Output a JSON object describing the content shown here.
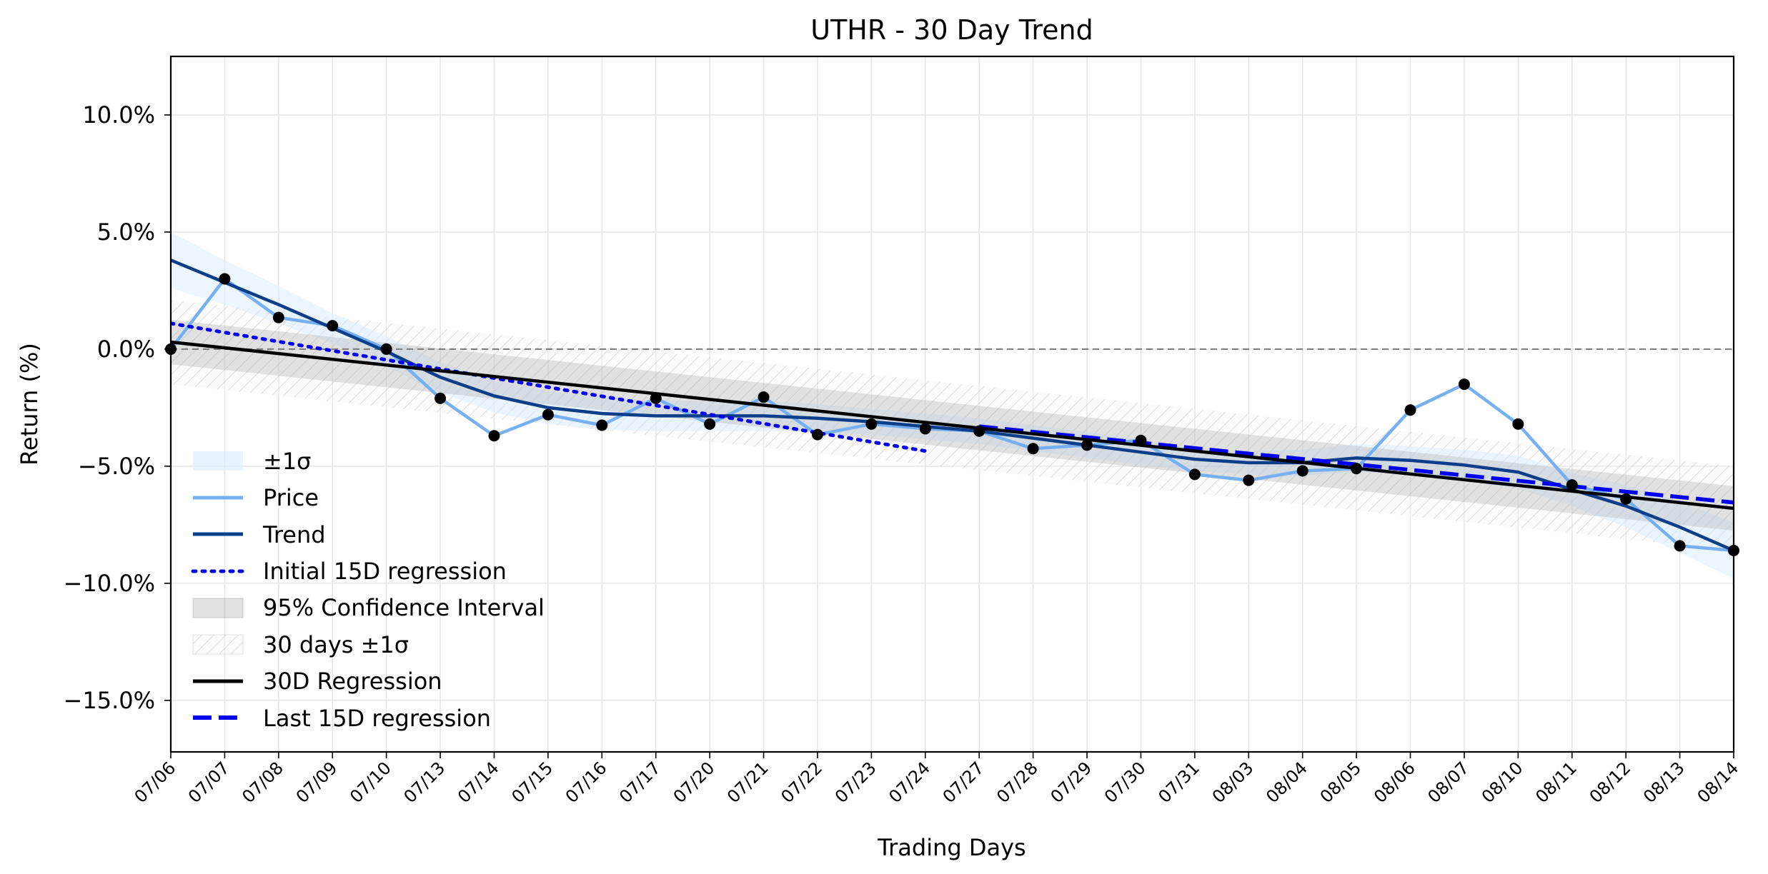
{
  "chart_data": {
    "type": "line",
    "title": "UTHR - 30 Day Trend",
    "xlabel": "Trading Days",
    "ylabel": "Return (%)",
    "categories": [
      "07/06",
      "07/07",
      "07/08",
      "07/09",
      "07/10",
      "07/13",
      "07/14",
      "07/15",
      "07/16",
      "07/17",
      "07/20",
      "07/21",
      "07/22",
      "07/23",
      "07/24",
      "07/27",
      "07/28",
      "07/29",
      "07/30",
      "07/31",
      "08/03",
      "08/04",
      "08/05",
      "08/06",
      "08/07",
      "08/10",
      "08/11",
      "08/12",
      "08/13",
      "08/14"
    ],
    "ylim": [
      -17.2,
      12.5
    ],
    "yticks": [
      10,
      5,
      0,
      -5,
      -10,
      -15
    ],
    "ytick_labels": [
      "10.0%",
      "5.0%",
      "0.0%",
      "−5.0%",
      "−10.0%",
      "−15.0%"
    ],
    "grid": true,
    "zero_line": true,
    "legend_position": "lower-left",
    "legend": [
      "±1σ",
      "Price",
      "Trend",
      "Initial 15D regression",
      "95% Confidence Interval",
      "30 days ±1σ",
      "30D Regression",
      "Last 15D regression"
    ],
    "colors": {
      "price": "#76b0f1",
      "trend": "#0d3e8a",
      "sigma_band": "#ddeeff",
      "ci_band": "#9e9e9e",
      "regression_30d": "#000000",
      "initial_15d": "#0000ee",
      "last_15d": "#0000ee",
      "markers": "#000000",
      "zero_line": "#808080"
    },
    "series": [
      {
        "name": "Price",
        "values": [
          0.0,
          3.0,
          1.35,
          1.0,
          0.0,
          -2.1,
          -3.7,
          -2.8,
          -3.25,
          -2.1,
          -3.2,
          -2.05,
          -3.65,
          -3.2,
          -3.4,
          -3.5,
          -4.25,
          -4.1,
          -3.9,
          -5.35,
          -5.6,
          -5.2,
          -5.1,
          -2.6,
          -1.5,
          -3.2,
          -5.8,
          -6.4,
          -8.4,
          -8.6
        ]
      },
      {
        "name": "Trend",
        "values": [
          3.8,
          2.85,
          1.9,
          0.9,
          -0.1,
          -1.2,
          -2.0,
          -2.5,
          -2.75,
          -2.85,
          -2.85,
          -2.85,
          -2.95,
          -3.1,
          -3.3,
          -3.5,
          -3.8,
          -4.1,
          -4.4,
          -4.7,
          -4.85,
          -4.85,
          -4.65,
          -4.75,
          -4.95,
          -5.25,
          -6.0,
          -6.7,
          -7.6,
          -8.6
        ]
      },
      {
        "name": "±1σ",
        "lower": [
          2.6,
          1.9,
          1.1,
          0.25,
          -0.75,
          -1.85,
          -2.7,
          -3.2,
          -3.45,
          -3.5,
          -3.5,
          -3.5,
          -3.55,
          -3.65,
          -3.85,
          -4.05,
          -4.35,
          -4.65,
          -4.95,
          -5.2,
          -5.35,
          -5.4,
          -5.25,
          -5.35,
          -5.6,
          -5.95,
          -6.7,
          -7.6,
          -8.7,
          -9.8
        ],
        "upper": [
          5.0,
          3.8,
          2.7,
          1.55,
          0.55,
          -0.55,
          -1.3,
          -1.8,
          -2.05,
          -2.2,
          -2.2,
          -2.2,
          -2.35,
          -2.55,
          -2.75,
          -2.95,
          -3.25,
          -3.55,
          -3.85,
          -4.2,
          -4.35,
          -4.3,
          -4.05,
          -4.15,
          -4.3,
          -4.55,
          -5.3,
          -5.8,
          -6.5,
          -7.4
        ]
      },
      {
        "name": "Initial 15D regression",
        "x_range": [
          "07/06",
          "07/24"
        ],
        "y_start": 1.1,
        "y_end": -4.35
      },
      {
        "name": "30D Regression",
        "x_range": [
          "07/06",
          "08/14"
        ],
        "y_start": 0.3,
        "y_end": -6.8
      },
      {
        "name": "95% Confidence Interval",
        "x_range": [
          "07/06",
          "08/14"
        ],
        "start": [
          -0.65,
          1.25
        ],
        "end": [
          -7.75,
          -5.85
        ]
      },
      {
        "name": "30 days ±1σ",
        "x_range": [
          "07/06",
          "08/14"
        ],
        "start": [
          -1.5,
          2.1
        ],
        "end": [
          -8.6,
          -5.0
        ]
      },
      {
        "name": "Last 15D regression",
        "x_range": [
          "07/27",
          "08/14"
        ],
        "y_start": -3.3,
        "y_end": -6.55
      }
    ]
  }
}
